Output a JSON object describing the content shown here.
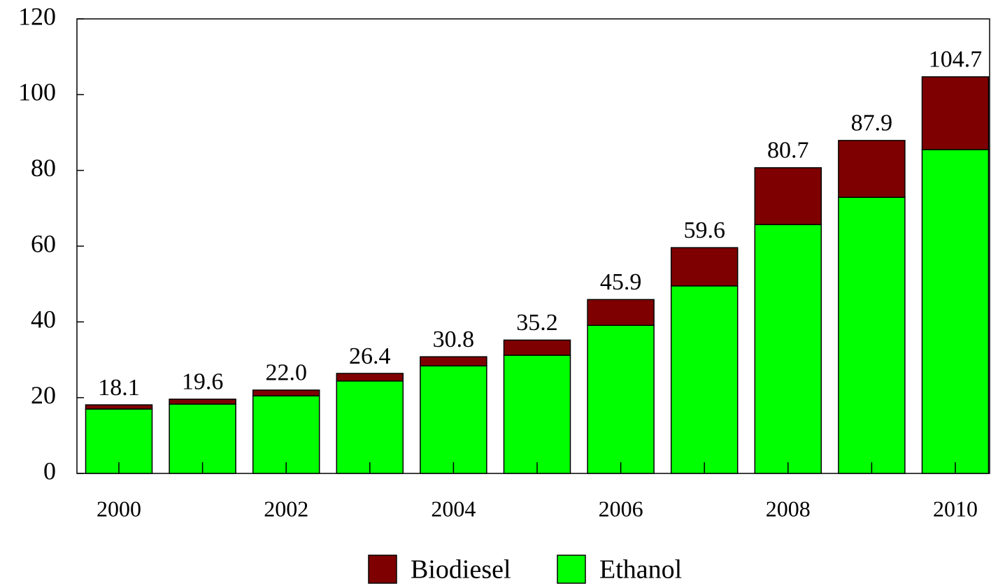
{
  "chart_data": {
    "type": "stacked_bar",
    "categories": [
      "2000",
      null,
      "2002",
      null,
      "2004",
      null,
      "2006",
      null,
      "2008",
      null,
      "2010"
    ],
    "series": [
      {
        "name": "Biodiesel",
        "color": "#7f0000",
        "values": [
          1.1,
          1.3,
          1.5,
          2.0,
          2.4,
          4.0,
          6.8,
          10.1,
          15.0,
          15.0,
          19.2
        ]
      },
      {
        "name": "Ethanol",
        "color": "#00ff00",
        "values": [
          17.0,
          18.3,
          20.5,
          24.4,
          28.4,
          31.2,
          39.1,
          49.5,
          65.7,
          72.9,
          85.5
        ]
      }
    ],
    "totals": [
      18.1,
      19.6,
      22.0,
      26.4,
      30.8,
      35.2,
      45.9,
      59.6,
      80.7,
      87.9,
      104.7
    ],
    "total_labels": [
      "18.1",
      "19.6",
      "22.0",
      "26.4",
      "30.8",
      "35.2",
      "45.9",
      "59.6",
      "80.7",
      "87.9",
      "104.7"
    ],
    "ylim": [
      0,
      120
    ],
    "yticks": [
      0,
      20,
      40,
      60,
      80,
      100,
      120
    ],
    "grid": false,
    "legend": "bottom"
  }
}
